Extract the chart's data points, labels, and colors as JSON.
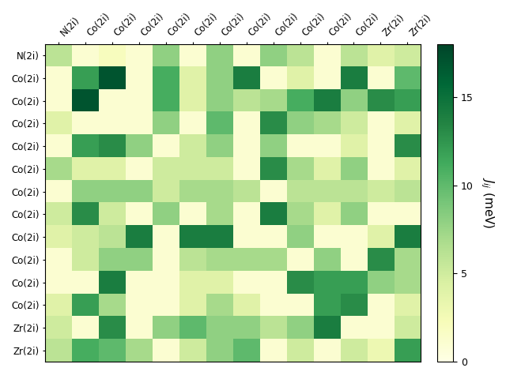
{
  "labels": [
    "N(2i)",
    "Co(2i)",
    "Co(2i)",
    "Co(2i)",
    "Co(2i)",
    "Co(2i)",
    "Co(2i)",
    "Co(2i)",
    "Co(2i)",
    "Co(2i)",
    "Co(2i)",
    "Co(2i)",
    "Zr(2i)",
    "Zr(2i)"
  ],
  "matrix": [
    [
      6,
      1,
      2,
      1,
      8,
      1,
      8,
      1,
      8,
      6,
      1,
      6,
      4,
      5
    ],
    [
      1,
      12,
      17,
      1,
      11,
      4,
      8,
      14,
      1,
      4,
      1,
      14,
      1,
      10
    ],
    [
      1,
      17,
      1,
      1,
      11,
      4,
      8,
      6,
      7,
      11,
      14,
      8,
      13,
      12
    ],
    [
      4,
      1,
      1,
      1,
      8,
      1,
      10,
      1,
      13,
      8,
      7,
      5,
      1,
      4
    ],
    [
      1,
      12,
      13,
      8,
      1,
      5,
      8,
      1,
      8,
      1,
      1,
      4,
      1,
      13
    ],
    [
      7,
      4,
      4,
      1,
      5,
      5,
      5,
      1,
      13,
      7,
      4,
      8,
      1,
      4
    ],
    [
      1,
      8,
      8,
      8,
      5,
      7,
      7,
      6,
      1,
      6,
      6,
      6,
      5,
      6
    ],
    [
      5,
      13,
      5,
      1,
      8,
      1,
      7,
      1,
      14,
      7,
      4,
      8,
      1,
      1
    ],
    [
      4,
      5,
      6,
      14,
      1,
      14,
      14,
      1,
      1,
      8,
      1,
      1,
      4,
      14
    ],
    [
      1,
      5,
      8,
      8,
      1,
      6,
      7,
      7,
      7,
      1,
      8,
      1,
      13,
      7
    ],
    [
      1,
      1,
      14,
      1,
      1,
      4,
      4,
      1,
      1,
      13,
      12,
      12,
      8,
      7
    ],
    [
      4,
      12,
      7,
      1,
      1,
      4,
      7,
      4,
      1,
      1,
      12,
      13,
      1,
      4
    ],
    [
      5,
      1,
      13,
      1,
      8,
      10,
      8,
      8,
      6,
      8,
      14,
      1,
      1,
      5
    ],
    [
      6,
      11,
      10,
      7,
      1,
      5,
      8,
      10,
      1,
      5,
      1,
      5,
      3,
      12
    ]
  ],
  "vmin": 0,
  "vmax": 18,
  "cbar_label": "$J_{ij}$ (meV)",
  "cbar_ticks": [
    0,
    5,
    10,
    15
  ],
  "cmap": "YlGn",
  "figsize": [
    6.4,
    4.8
  ],
  "dpi": 100
}
